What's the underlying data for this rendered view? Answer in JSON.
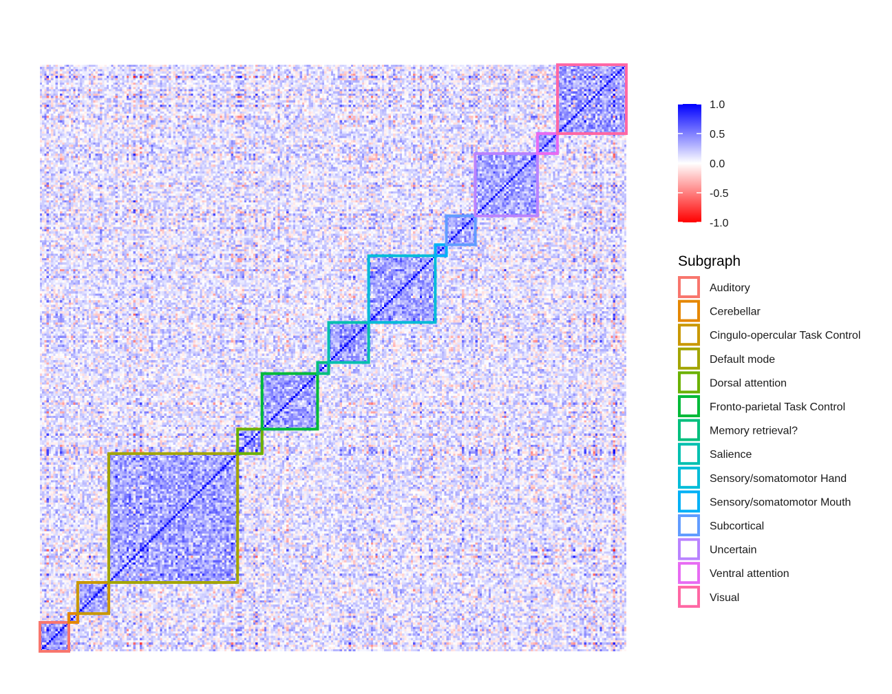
{
  "chart_data": {
    "type": "heatmap",
    "title": "",
    "xlabel": "",
    "ylabel": "",
    "value_range": [
      -1.0,
      1.0
    ],
    "colorscale": {
      "low": "#ff0000",
      "mid": "#ffffff",
      "high": "#0000ff",
      "ticks": [
        {
          "value": 1.0,
          "label": "1.0"
        },
        {
          "value": 0.5,
          "label": "0.5"
        },
        {
          "value": 0.0,
          "label": "0.0"
        },
        {
          "value": -0.5,
          "label": "-0.5"
        },
        {
          "value": -1.0,
          "label": "-1.0"
        }
      ]
    },
    "matrix_size": 264,
    "diagonal_value": 1.0,
    "grid": false,
    "legend_position": "right",
    "legend_title": "Subgraph",
    "subgraphs": [
      {
        "name": "Auditory",
        "color": "#F8766D",
        "start": 0,
        "end": 13
      },
      {
        "name": "Cerebellar",
        "color": "#E58700",
        "start": 13,
        "end": 17
      },
      {
        "name": "Cingulo-opercular Task Control",
        "color": "#C99800",
        "start": 17,
        "end": 31
      },
      {
        "name": "Default mode",
        "color": "#A3A500",
        "start": 31,
        "end": 89
      },
      {
        "name": "Dorsal attention",
        "color": "#6BB100",
        "start": 89,
        "end": 100
      },
      {
        "name": "Fronto-parietal Task Control",
        "color": "#00BA38",
        "start": 100,
        "end": 125
      },
      {
        "name": "Memory retrieval?",
        "color": "#00BF7D",
        "start": 125,
        "end": 130
      },
      {
        "name": "Salience",
        "color": "#00C0AF",
        "start": 130,
        "end": 148
      },
      {
        "name": "Sensory/somatomotor Hand",
        "color": "#00BCD8",
        "start": 148,
        "end": 178
      },
      {
        "name": "Sensory/somatomotor Mouth",
        "color": "#00B0F6",
        "start": 178,
        "end": 183
      },
      {
        "name": "Subcortical",
        "color": "#619CFF",
        "start": 183,
        "end": 196
      },
      {
        "name": "Uncertain",
        "color": "#B983FF",
        "start": 196,
        "end": 224
      },
      {
        "name": "Ventral attention",
        "color": "#E76BF3",
        "start": 224,
        "end": 233
      },
      {
        "name": "Visual",
        "color": "#FF67A4",
        "start": 233,
        "end": 264
      }
    ]
  }
}
